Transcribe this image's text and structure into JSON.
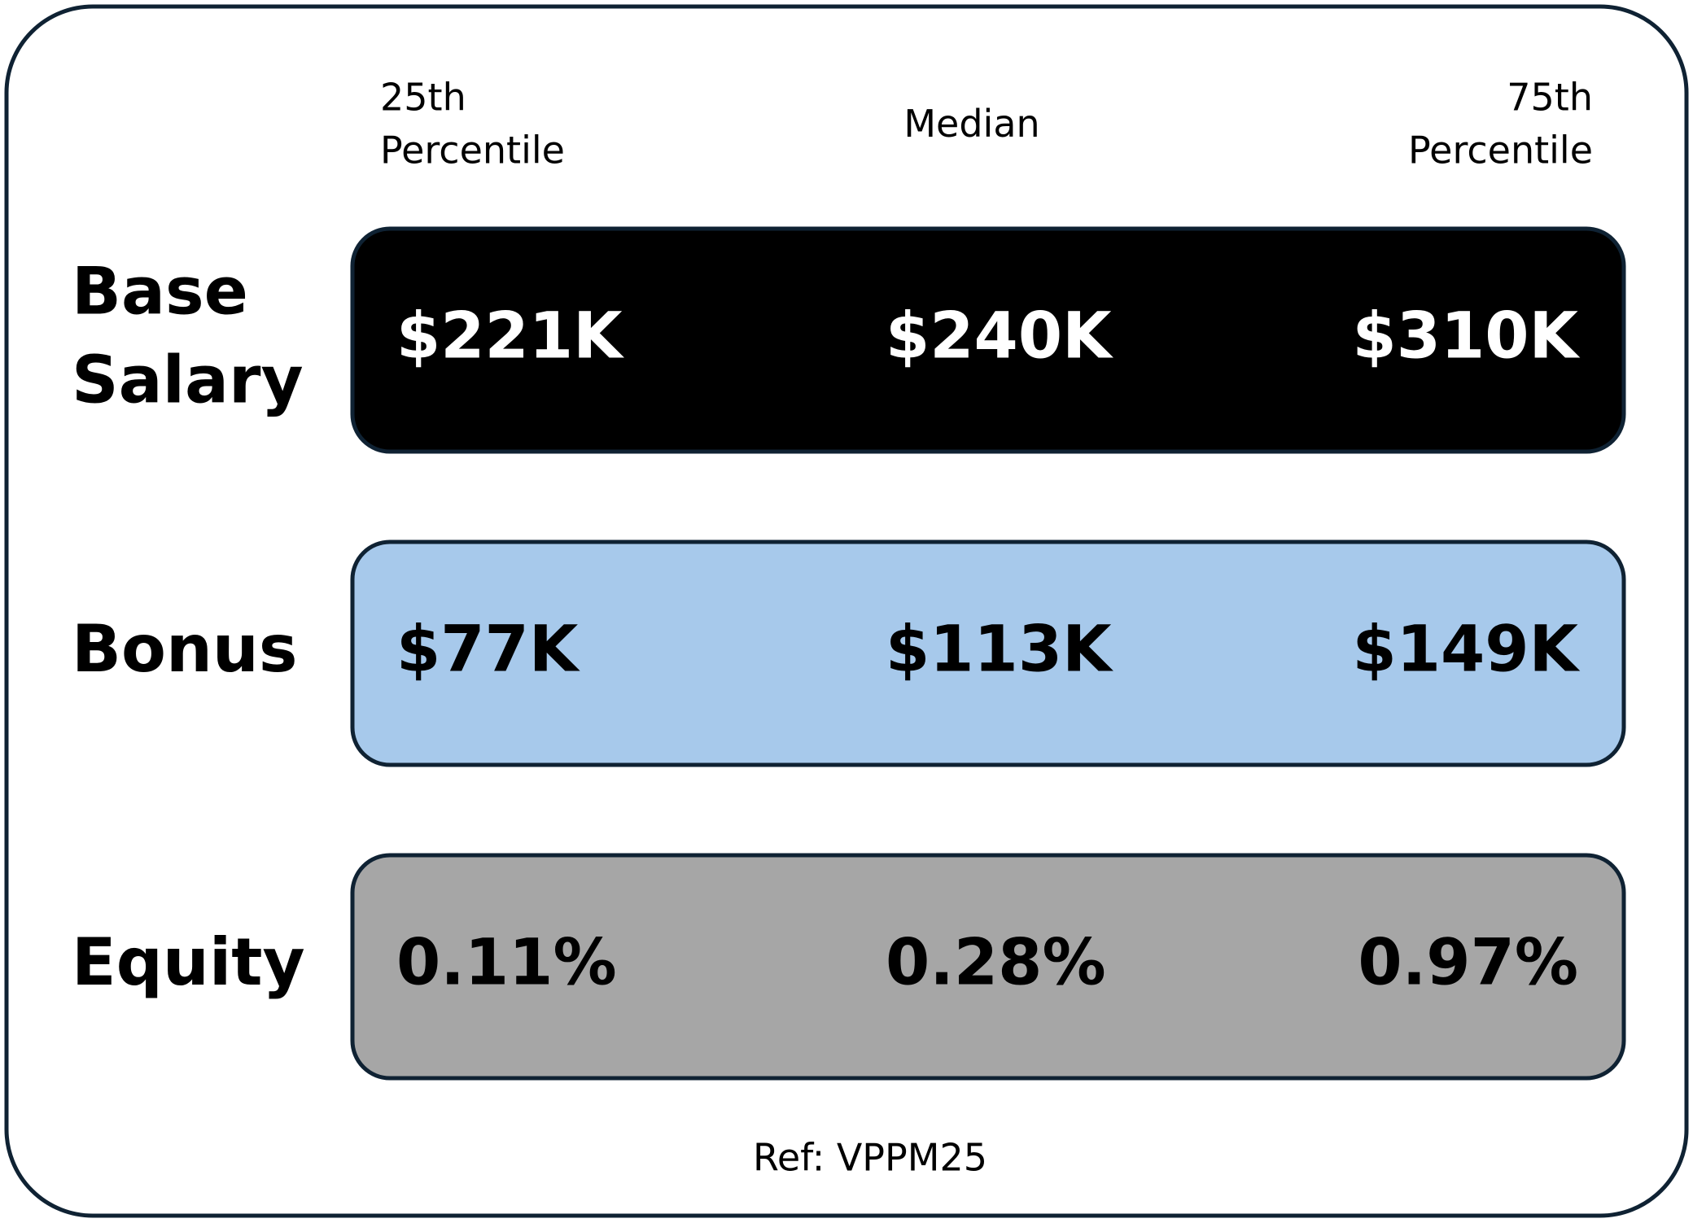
{
  "header": {
    "columns": [
      [
        "25th",
        "Percentile"
      ],
      [
        "Median"
      ],
      [
        "75th",
        "Percentile"
      ]
    ]
  },
  "rows": [
    {
      "label": [
        "Base",
        "Salary"
      ],
      "values": [
        "$221K",
        "$240K",
        "$310K"
      ]
    },
    {
      "label": [
        "Bonus"
      ],
      "values": [
        "$77K",
        "$113K",
        "$149K"
      ]
    },
    {
      "label": [
        "Equity"
      ],
      "values": [
        "0.11%",
        "0.28%",
        "0.97%"
      ]
    }
  ],
  "footer": "Ref: VPPM25"
}
